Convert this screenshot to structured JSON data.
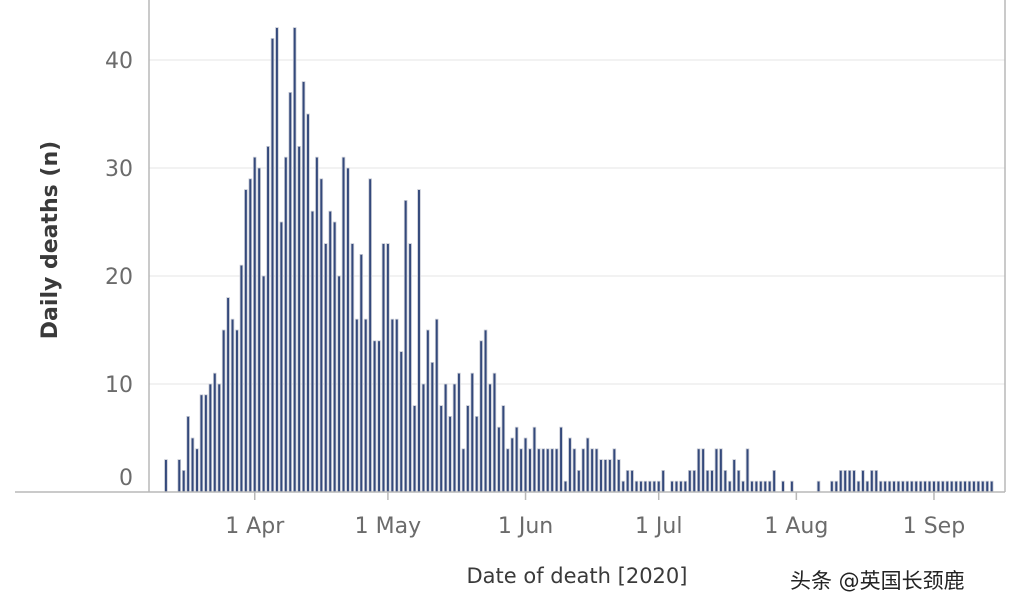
{
  "chart_data": {
    "type": "bar",
    "xlabel": "Date of death [2020]",
    "ylabel": "Daily deaths (n)",
    "ylim": [
      0,
      45
    ],
    "grid": true,
    "y_ticks": [
      0,
      10,
      20,
      30,
      40
    ],
    "x_ticks": [
      {
        "label": "1 Apr",
        "day": 31
      },
      {
        "label": "1 May",
        "day": 61
      },
      {
        "label": "1 Jun",
        "day": 92
      },
      {
        "label": "1 Jul",
        "day": 122
      },
      {
        "label": "1 Aug",
        "day": 153
      },
      {
        "label": "1 Sep",
        "day": 184
      }
    ],
    "x_domain": [
      -23,
      200
    ],
    "start_day": 11,
    "start_date": "2020-03-12",
    "values": [
      3,
      0,
      0,
      3,
      2,
      7,
      5,
      4,
      9,
      9,
      10,
      11,
      10,
      15,
      18,
      16,
      15,
      21,
      28,
      29,
      31,
      30,
      20,
      32,
      42,
      43,
      25,
      31,
      37,
      43,
      32,
      38,
      35,
      26,
      31,
      29,
      23,
      26,
      25,
      20,
      31,
      30,
      23,
      16,
      22,
      16,
      29,
      14,
      14,
      23,
      23,
      16,
      16,
      13,
      27,
      23,
      8,
      28,
      10,
      15,
      12,
      16,
      8,
      10,
      7,
      10,
      11,
      4,
      8,
      11,
      7,
      14,
      15,
      10,
      11,
      6,
      8,
      4,
      5,
      6,
      4,
      5,
      4,
      6,
      4,
      4,
      4,
      4,
      4,
      6,
      1,
      5,
      4,
      2,
      4,
      5,
      4,
      4,
      3,
      3,
      3,
      4,
      3,
      1,
      2,
      2,
      1,
      1,
      1,
      1,
      1,
      1,
      2,
      0,
      1,
      1,
      1,
      1,
      2,
      2,
      4,
      4,
      2,
      2,
      4,
      4,
      2,
      1,
      3,
      2,
      1,
      4,
      1,
      1,
      1,
      1,
      1,
      2,
      0,
      1,
      0,
      1,
      0,
      0,
      0,
      0,
      0,
      1,
      0,
      0,
      1,
      1,
      2,
      2,
      2,
      2,
      1,
      2,
      1,
      2,
      2,
      1,
      1,
      1,
      1,
      1,
      1,
      1,
      1,
      1,
      1,
      1,
      1,
      1,
      1,
      1,
      1,
      1,
      1,
      1,
      1,
      1,
      1,
      1,
      1,
      1,
      1
    ],
    "values_sparse_tail": {
      "note": "trailing bars",
      "days": [],
      "values": []
    }
  },
  "watermark": "头条 @英国长颈鹿",
  "colors": {
    "bar": "#34497b",
    "bar_edge": "#c9ccd6",
    "grid": "#e6e6e6",
    "axis": "#b8b8b8"
  }
}
